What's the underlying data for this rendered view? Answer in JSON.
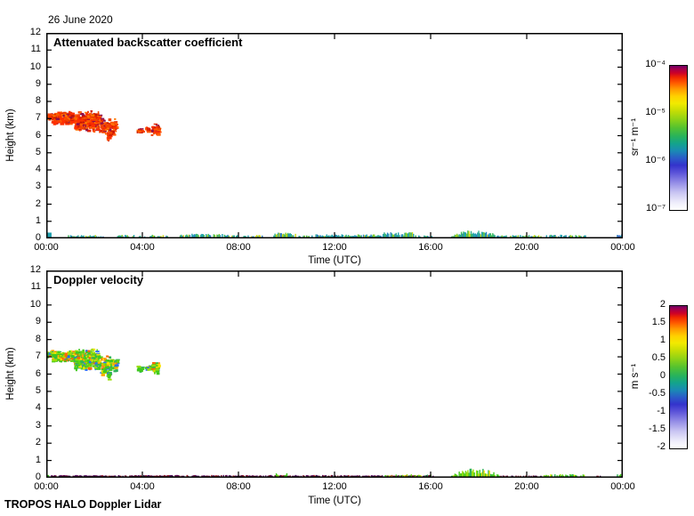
{
  "page": {
    "background": "#ffffff"
  },
  "header": {
    "date_title": "26 June 2020"
  },
  "footer": {
    "credit": "TROPOS HALO Doppler Lidar"
  },
  "colormap": [
    [
      0,
      "#ffffff"
    ],
    [
      5,
      "#efeefb"
    ],
    [
      12,
      "#c9c5f2"
    ],
    [
      19,
      "#938ce6"
    ],
    [
      26,
      "#5a52d8"
    ],
    [
      31,
      "#3333cc"
    ],
    [
      36,
      "#2a5cc8"
    ],
    [
      41,
      "#1a8ab4"
    ],
    [
      46,
      "#13a38c"
    ],
    [
      51,
      "#27b25c"
    ],
    [
      57,
      "#54c230"
    ],
    [
      63,
      "#8fd216"
    ],
    [
      69,
      "#c8de04"
    ],
    [
      74,
      "#f2ea00"
    ],
    [
      79,
      "#ffd000"
    ],
    [
      84,
      "#ff9800"
    ],
    [
      88,
      "#ff5c00"
    ],
    [
      92,
      "#f02800"
    ],
    [
      95,
      "#cc0028"
    ],
    [
      98,
      "#a0004e"
    ],
    [
      100,
      "#6e0066"
    ]
  ],
  "chart_data": [
    {
      "type": "heatmap",
      "title": "Attenuated backscatter coefficient",
      "xlabel": "Time (UTC)",
      "ylabel": "Height (km)",
      "x_ticks": [
        "00:00",
        "04:00",
        "08:00",
        "12:00",
        "16:00",
        "20:00",
        "00:00"
      ],
      "x_tick_hours": [
        0,
        4,
        8,
        12,
        16,
        20,
        24
      ],
      "xlim_hours": [
        0,
        24
      ],
      "y_ticks": [
        0,
        1,
        2,
        3,
        4,
        5,
        6,
        7,
        8,
        9,
        10,
        11,
        12
      ],
      "ylim_km": [
        0,
        12
      ],
      "grid": false,
      "colorbar": {
        "scale": "log",
        "range": [
          "1e-7",
          "1e-4"
        ],
        "ticks": [
          "10⁻⁴",
          "10⁻⁵",
          "10⁻⁶",
          "10⁻⁷"
        ],
        "unit": "sr⁻¹ m⁻¹"
      },
      "palettes": {
        "cloud": [
          "#ff3000",
          "#f24300",
          "#ff5a00",
          "#e02400",
          "#ff7800",
          "#c81600",
          "#90104a"
        ],
        "surface": [
          "#1f9fae",
          "#2fae8c",
          "#37b958",
          "#7ecb2a",
          "#cdd916",
          "#2a7fc0"
        ],
        "blue": [
          "#2a7fc0",
          "#1f9fae",
          "#3f6fd0"
        ]
      },
      "features": [
        {
          "kind": "cloud",
          "t": [
            0.0,
            0.18
          ],
          "h": [
            6.95,
            7.4
          ],
          "density": 0.95,
          "palette": "cloud",
          "value": "~2e-5 to 1e-4 sr⁻¹ m⁻¹ (cloud layer)"
        },
        {
          "kind": "cloud",
          "t": [
            0.2,
            1.15
          ],
          "h": [
            6.7,
            7.45
          ],
          "density": 0.85,
          "palette": "cloud",
          "value": "~2e-5 to 1e-4 sr⁻¹ m⁻¹ (cloud layer)"
        },
        {
          "kind": "cloud",
          "t": [
            1.15,
            2.2
          ],
          "h": [
            6.25,
            7.5
          ],
          "density": 0.75,
          "palette": "cloud",
          "value": "~2e-5 to 1e-4 sr⁻¹ m⁻¹ (cloud layer)"
        },
        {
          "kind": "cloud",
          "t": [
            2.2,
            2.9
          ],
          "h": [
            6.0,
            7.15
          ],
          "density": 0.45,
          "palette": "cloud",
          "value": "~2e-5 sr⁻¹ m⁻¹ (cloud fragments)"
        },
        {
          "kind": "cloud",
          "t": [
            2.5,
            2.62
          ],
          "h": [
            5.65,
            6.35
          ],
          "density": 0.65,
          "palette": "cloud",
          "value": "fall streak"
        },
        {
          "kind": "cloud",
          "t": [
            3.75,
            3.98
          ],
          "h": [
            6.15,
            6.5
          ],
          "density": 0.65,
          "palette": "cloud",
          "value": "cloud fragment"
        },
        {
          "kind": "cloud",
          "t": [
            4.1,
            4.26
          ],
          "h": [
            6.25,
            6.58
          ],
          "density": 0.6,
          "palette": "cloud",
          "value": "cloud fragment"
        },
        {
          "kind": "cloud",
          "t": [
            4.35,
            4.65
          ],
          "h": [
            6.05,
            6.72
          ],
          "density": 0.85,
          "palette": "cloud",
          "value": "cloud fragment"
        },
        {
          "kind": "block",
          "t": [
            0.0,
            0.22
          ],
          "h": [
            0,
            0.34
          ],
          "color": "#1f9fae",
          "value": "~1e-6 sr⁻¹ m⁻¹ near-surface"
        },
        {
          "kind": "surface",
          "t": [
            0.9,
            2.35
          ],
          "hmax": 0.14,
          "density": 0.75,
          "palette": "surface",
          "value": "~5e-7 to 2e-6 sr⁻¹ m⁻¹ surface aerosol"
        },
        {
          "kind": "surface",
          "t": [
            2.95,
            3.65
          ],
          "hmax": 0.15,
          "density": 0.7,
          "palette": "surface"
        },
        {
          "kind": "surface",
          "t": [
            3.8,
            4.08
          ],
          "hmax": 0.12,
          "density": 0.7,
          "palette": "surface"
        },
        {
          "kind": "surface",
          "t": [
            4.3,
            5.05
          ],
          "hmax": 0.15,
          "density": 0.7,
          "palette": "surface"
        },
        {
          "kind": "surface",
          "t": [
            5.55,
            7.95
          ],
          "hmax": 0.22,
          "density": 0.8,
          "palette": "surface"
        },
        {
          "kind": "surface",
          "t": [
            8.2,
            9.0
          ],
          "hmax": 0.15,
          "density": 0.7,
          "palette": "surface"
        },
        {
          "kind": "surface",
          "t": [
            9.45,
            10.35
          ],
          "hmax": 0.3,
          "density": 0.85,
          "palette": "surface"
        },
        {
          "kind": "surface",
          "t": [
            10.5,
            11.05
          ],
          "hmax": 0.13,
          "density": 0.65,
          "palette": "surface"
        },
        {
          "kind": "surface",
          "t": [
            11.2,
            14.0
          ],
          "hmax": 0.18,
          "density": 0.9,
          "palette": "surface"
        },
        {
          "kind": "surface",
          "t": [
            14.0,
            15.35
          ],
          "hmax": 0.32,
          "density": 0.9,
          "palette": "surface"
        },
        {
          "kind": "surface",
          "t": [
            15.35,
            16.05
          ],
          "hmax": 0.12,
          "density": 0.6,
          "palette": "surface"
        },
        {
          "kind": "surface",
          "t": [
            16.85,
            18.85
          ],
          "hmax": 0.5,
          "density": 0.95,
          "palette": "surface",
          "envelope": true,
          "value": "boundary-layer plume up to ~0.5 km, 17:00–19:00"
        },
        {
          "kind": "surface",
          "t": [
            18.9,
            20.65
          ],
          "hmax": 0.14,
          "density": 0.7,
          "palette": "surface"
        },
        {
          "kind": "surface",
          "t": [
            20.8,
            22.45
          ],
          "hmax": 0.16,
          "density": 0.75,
          "palette": "surface"
        },
        {
          "kind": "surface",
          "t": [
            23.75,
            23.95
          ],
          "hmax": 0.2,
          "density": 0.8,
          "palette": "blue"
        }
      ]
    },
    {
      "type": "heatmap",
      "title": "Doppler velocity",
      "xlabel": "Time (UTC)",
      "ylabel": "Height (km)",
      "x_ticks": [
        "00:00",
        "04:00",
        "08:00",
        "12:00",
        "16:00",
        "20:00",
        "00:00"
      ],
      "x_tick_hours": [
        0,
        4,
        8,
        12,
        16,
        20,
        24
      ],
      "xlim_hours": [
        0,
        24
      ],
      "y_ticks": [
        0,
        1,
        2,
        3,
        4,
        5,
        6,
        7,
        8,
        9,
        10,
        11,
        12
      ],
      "ylim_km": [
        0,
        12
      ],
      "grid": false,
      "colorbar": {
        "scale": "linear",
        "range": [
          -2,
          2
        ],
        "ticks": [
          "2",
          "1.5",
          "1",
          "0.5",
          "0",
          "-0.5",
          "-1",
          "-1.5",
          "-2"
        ],
        "unit": "m s⁻¹"
      },
      "palettes": {
        "cloud": [
          "#3fc81e",
          "#63d312",
          "#9ade06",
          "#ffe400",
          "#2fb25a",
          "#ffaa00",
          "#ff6a00",
          "#2a6cff"
        ],
        "green": [
          "#3fc81e",
          "#63d312",
          "#9ade06",
          "#ffe400",
          "#2fb25a"
        ],
        "dark": [
          "#5a0f62",
          "#7a1430",
          "#43104f",
          "#9c1a24",
          "#6e1048"
        ]
      },
      "features": [
        {
          "kind": "cloud",
          "t": [
            0.0,
            0.18
          ],
          "h": [
            6.95,
            7.4
          ],
          "density": 0.95,
          "palette": "cloud",
          "value": "≈ -0.2 to +1 m s⁻¹ (green/yellow)"
        },
        {
          "kind": "cloud",
          "t": [
            0.2,
            1.15
          ],
          "h": [
            6.7,
            7.45
          ],
          "density": 0.85,
          "palette": "cloud",
          "value": "≈ -0.2 to +1 m s⁻¹"
        },
        {
          "kind": "cloud",
          "t": [
            1.15,
            2.2
          ],
          "h": [
            6.25,
            7.5
          ],
          "density": 0.75,
          "palette": "cloud",
          "value": "≈ 0 to +1 m s⁻¹"
        },
        {
          "kind": "cloud",
          "t": [
            2.2,
            2.9
          ],
          "h": [
            6.0,
            7.15
          ],
          "density": 0.45,
          "palette": "cloud"
        },
        {
          "kind": "cloud",
          "t": [
            2.5,
            2.62
          ],
          "h": [
            5.65,
            6.35
          ],
          "density": 0.65,
          "palette": "cloud"
        },
        {
          "kind": "cloud",
          "t": [
            3.75,
            3.98
          ],
          "h": [
            6.15,
            6.5
          ],
          "density": 0.65,
          "palette": "cloud"
        },
        {
          "kind": "cloud",
          "t": [
            4.1,
            4.26
          ],
          "h": [
            6.25,
            6.58
          ],
          "density": 0.6,
          "palette": "cloud"
        },
        {
          "kind": "cloud",
          "t": [
            4.35,
            4.65
          ],
          "h": [
            6.05,
            6.72
          ],
          "density": 0.85,
          "palette": "cloud"
        },
        {
          "kind": "block",
          "t": [
            0.0,
            0.12
          ],
          "h": [
            0,
            0.16
          ],
          "color": "#3fc81e"
        },
        {
          "kind": "surface",
          "t": [
            0.15,
            3.3
          ],
          "hmax": 0.1,
          "density": 0.85,
          "palette": "dark",
          "value": "noisy near-surface velocities ≈ ±2 m s⁻¹"
        },
        {
          "kind": "surface",
          "t": [
            3.45,
            5.9
          ],
          "hmax": 0.1,
          "density": 0.85,
          "palette": "dark"
        },
        {
          "kind": "surface",
          "t": [
            6.05,
            9.4
          ],
          "hmax": 0.1,
          "density": 0.85,
          "palette": "dark"
        },
        {
          "kind": "surface",
          "t": [
            9.5,
            13.05
          ],
          "hmax": 0.1,
          "density": 0.85,
          "palette": "dark"
        },
        {
          "kind": "surface",
          "t": [
            9.55,
            9.68
          ],
          "hmax": 0.22,
          "density": 0.9,
          "palette": "green"
        },
        {
          "kind": "surface",
          "t": [
            9.9,
            10.0
          ],
          "hmax": 0.2,
          "density": 0.9,
          "palette": "green"
        },
        {
          "kind": "surface",
          "t": [
            13.15,
            16.1
          ],
          "hmax": 0.1,
          "density": 0.85,
          "palette": "dark"
        },
        {
          "kind": "surface",
          "t": [
            14.0,
            16.0
          ],
          "hmax": 0.14,
          "density": 0.5,
          "palette": "green",
          "value": "≈ -0.5 to +0.5 m s⁻¹ (green)"
        },
        {
          "kind": "surface",
          "t": [
            16.85,
            18.85
          ],
          "hmax": 0.5,
          "density": 0.95,
          "palette": "green",
          "envelope": true,
          "value": "plume 17:00–19:00, ≈ 0 ± 0.5 m s⁻¹"
        },
        {
          "kind": "surface",
          "t": [
            18.9,
            20.6
          ],
          "hmax": 0.08,
          "density": 0.5,
          "palette": "dark"
        },
        {
          "kind": "surface",
          "t": [
            20.7,
            22.4
          ],
          "hmax": 0.15,
          "density": 0.7,
          "palette": "green"
        },
        {
          "kind": "surface",
          "t": [
            22.9,
            23.1
          ],
          "hmax": 0.08,
          "density": 0.5,
          "palette": "dark"
        },
        {
          "kind": "surface",
          "t": [
            23.75,
            23.9
          ],
          "hmax": 0.16,
          "density": 0.8,
          "palette": "green"
        }
      ]
    }
  ]
}
